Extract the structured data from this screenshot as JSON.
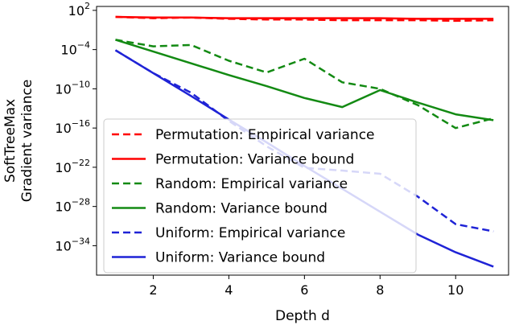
{
  "chart_data": {
    "type": "line",
    "xlabel": "Depth d",
    "ylabel_lines": [
      "SoftTreeMax",
      "Gradient variance"
    ],
    "yscale": "log10",
    "xlim": [
      0.5,
      11.4
    ],
    "ylim_exponent": [
      -38.5,
      2.6
    ],
    "x_ticks": [
      2,
      4,
      6,
      8,
      10
    ],
    "x_tick_labels": [
      "2",
      "4",
      "6",
      "8",
      "10"
    ],
    "y_tick_exponents": [
      2,
      -4,
      -10,
      -16,
      -22,
      -28,
      -34
    ],
    "y_tick_labels": [
      "10^2",
      "10^-4",
      "10^-10",
      "10^-16",
      "10^-22",
      "10^-28",
      "10^-34"
    ],
    "legend_position": "lower-left",
    "x": [
      1,
      2,
      3,
      4,
      5,
      6,
      7,
      8,
      9,
      10,
      11
    ],
    "series": [
      {
        "name": "Permutation: Empirical variance",
        "color": "#ff0000",
        "dash": "dashed",
        "log10_values": [
          1.0,
          0.8,
          0.9,
          0.7,
          0.6,
          0.6,
          0.5,
          0.5,
          0.5,
          0.4,
          0.5
        ]
      },
      {
        "name": "Permutation: Variance bound",
        "color": "#ff0000",
        "dash": "solid",
        "log10_values": [
          1.0,
          0.9,
          0.9,
          0.8,
          0.8,
          0.8,
          0.8,
          0.8,
          0.7,
          0.7,
          0.7
        ]
      },
      {
        "name": "Random: Empirical variance",
        "color": "#138a13",
        "dash": "dashed",
        "log10_values": [
          -2.5,
          -3.5,
          -3.3,
          -5.7,
          -7.5,
          -5.4,
          -9.0,
          -10.0,
          -12.5,
          -16.0,
          -14.5
        ]
      },
      {
        "name": "Random: Variance bound",
        "color": "#138a13",
        "dash": "solid",
        "log10_values": [
          -2.5,
          -4.3,
          -6.1,
          -7.9,
          -9.6,
          -11.4,
          -12.8,
          -10.2,
          -12.1,
          -13.9,
          -14.8
        ]
      },
      {
        "name": "Uniform: Empirical variance",
        "color": "#1f23d6",
        "dash": "dashed",
        "log10_values": [
          -4.1,
          -7.6,
          -10.6,
          -14.9,
          -18.8,
          -22.1,
          -22.5,
          -23.0,
          -26.5,
          -30.7,
          -31.8
        ]
      },
      {
        "name": "Uniform: Variance bound",
        "color": "#1f23d6",
        "dash": "solid",
        "log10_values": [
          -4.1,
          -7.6,
          -11.1,
          -14.7,
          -18.2,
          -21.8,
          -25.3,
          -28.8,
          -32.3,
          -35.0,
          -37.2
        ]
      }
    ]
  }
}
